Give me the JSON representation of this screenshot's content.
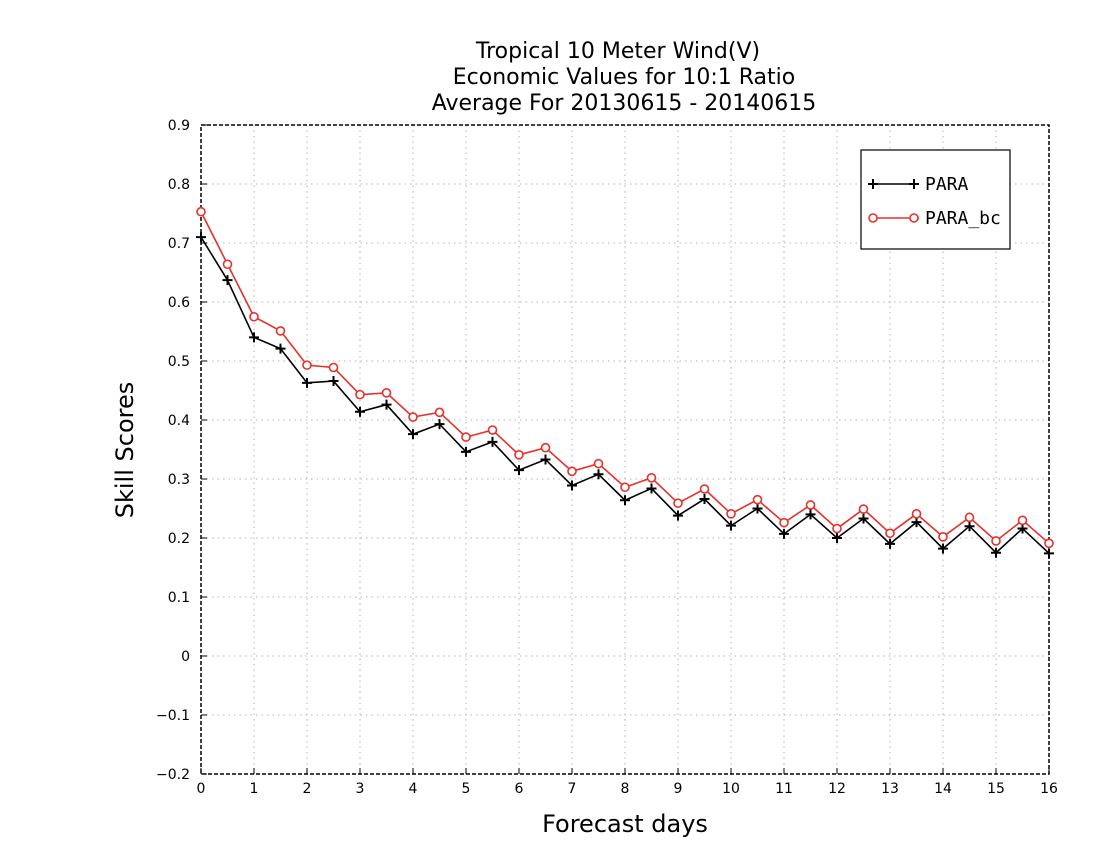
{
  "chart_data": {
    "type": "line",
    "title": [
      "Tropical 10 Meter Wind(V)",
      "Economic Values for 10:1 Ratio",
      "Average For 20130615 - 20140615"
    ],
    "xlabel": "Forecast days",
    "ylabel": "Skill Scores",
    "xlim": [
      0,
      16
    ],
    "ylim": [
      -0.2,
      0.9
    ],
    "xticks": [
      0,
      1,
      2,
      3,
      4,
      5,
      6,
      7,
      8,
      9,
      10,
      11,
      12,
      13,
      14,
      15,
      16
    ],
    "yticks": [
      -0.2,
      -0.1,
      0,
      0.1,
      0.2,
      0.3,
      0.4,
      0.5,
      0.6,
      0.7,
      0.8,
      0.9
    ],
    "grid": true,
    "legend_position": "top-right",
    "x": [
      0,
      0.5,
      1,
      1.5,
      2,
      2.5,
      3,
      3.5,
      4,
      4.5,
      5,
      5.5,
      6,
      6.5,
      7,
      7.5,
      8,
      8.5,
      9,
      9.5,
      10,
      10.5,
      11,
      11.5,
      12,
      12.5,
      13,
      13.5,
      14,
      14.5,
      15,
      15.5,
      16
    ],
    "series": [
      {
        "name": "PARA",
        "color": "#000000",
        "marker": "plus",
        "values": [
          0.71,
          0.637,
          0.54,
          0.521,
          0.463,
          0.466,
          0.414,
          0.426,
          0.376,
          0.393,
          0.346,
          0.363,
          0.315,
          0.333,
          0.289,
          0.308,
          0.264,
          0.284,
          0.238,
          0.266,
          0.221,
          0.25,
          0.207,
          0.24,
          0.2,
          0.233,
          0.19,
          0.227,
          0.182,
          0.22,
          0.175,
          0.216,
          0.174
        ]
      },
      {
        "name": "PARA_bc",
        "color": "#e8302a",
        "marker": "circle",
        "values": [
          0.753,
          0.664,
          0.575,
          0.551,
          0.493,
          0.489,
          0.443,
          0.446,
          0.405,
          0.413,
          0.371,
          0.383,
          0.341,
          0.353,
          0.313,
          0.326,
          0.286,
          0.302,
          0.259,
          0.283,
          0.241,
          0.265,
          0.226,
          0.256,
          0.216,
          0.249,
          0.208,
          0.241,
          0.202,
          0.235,
          0.195,
          0.23,
          0.191
        ]
      }
    ]
  }
}
